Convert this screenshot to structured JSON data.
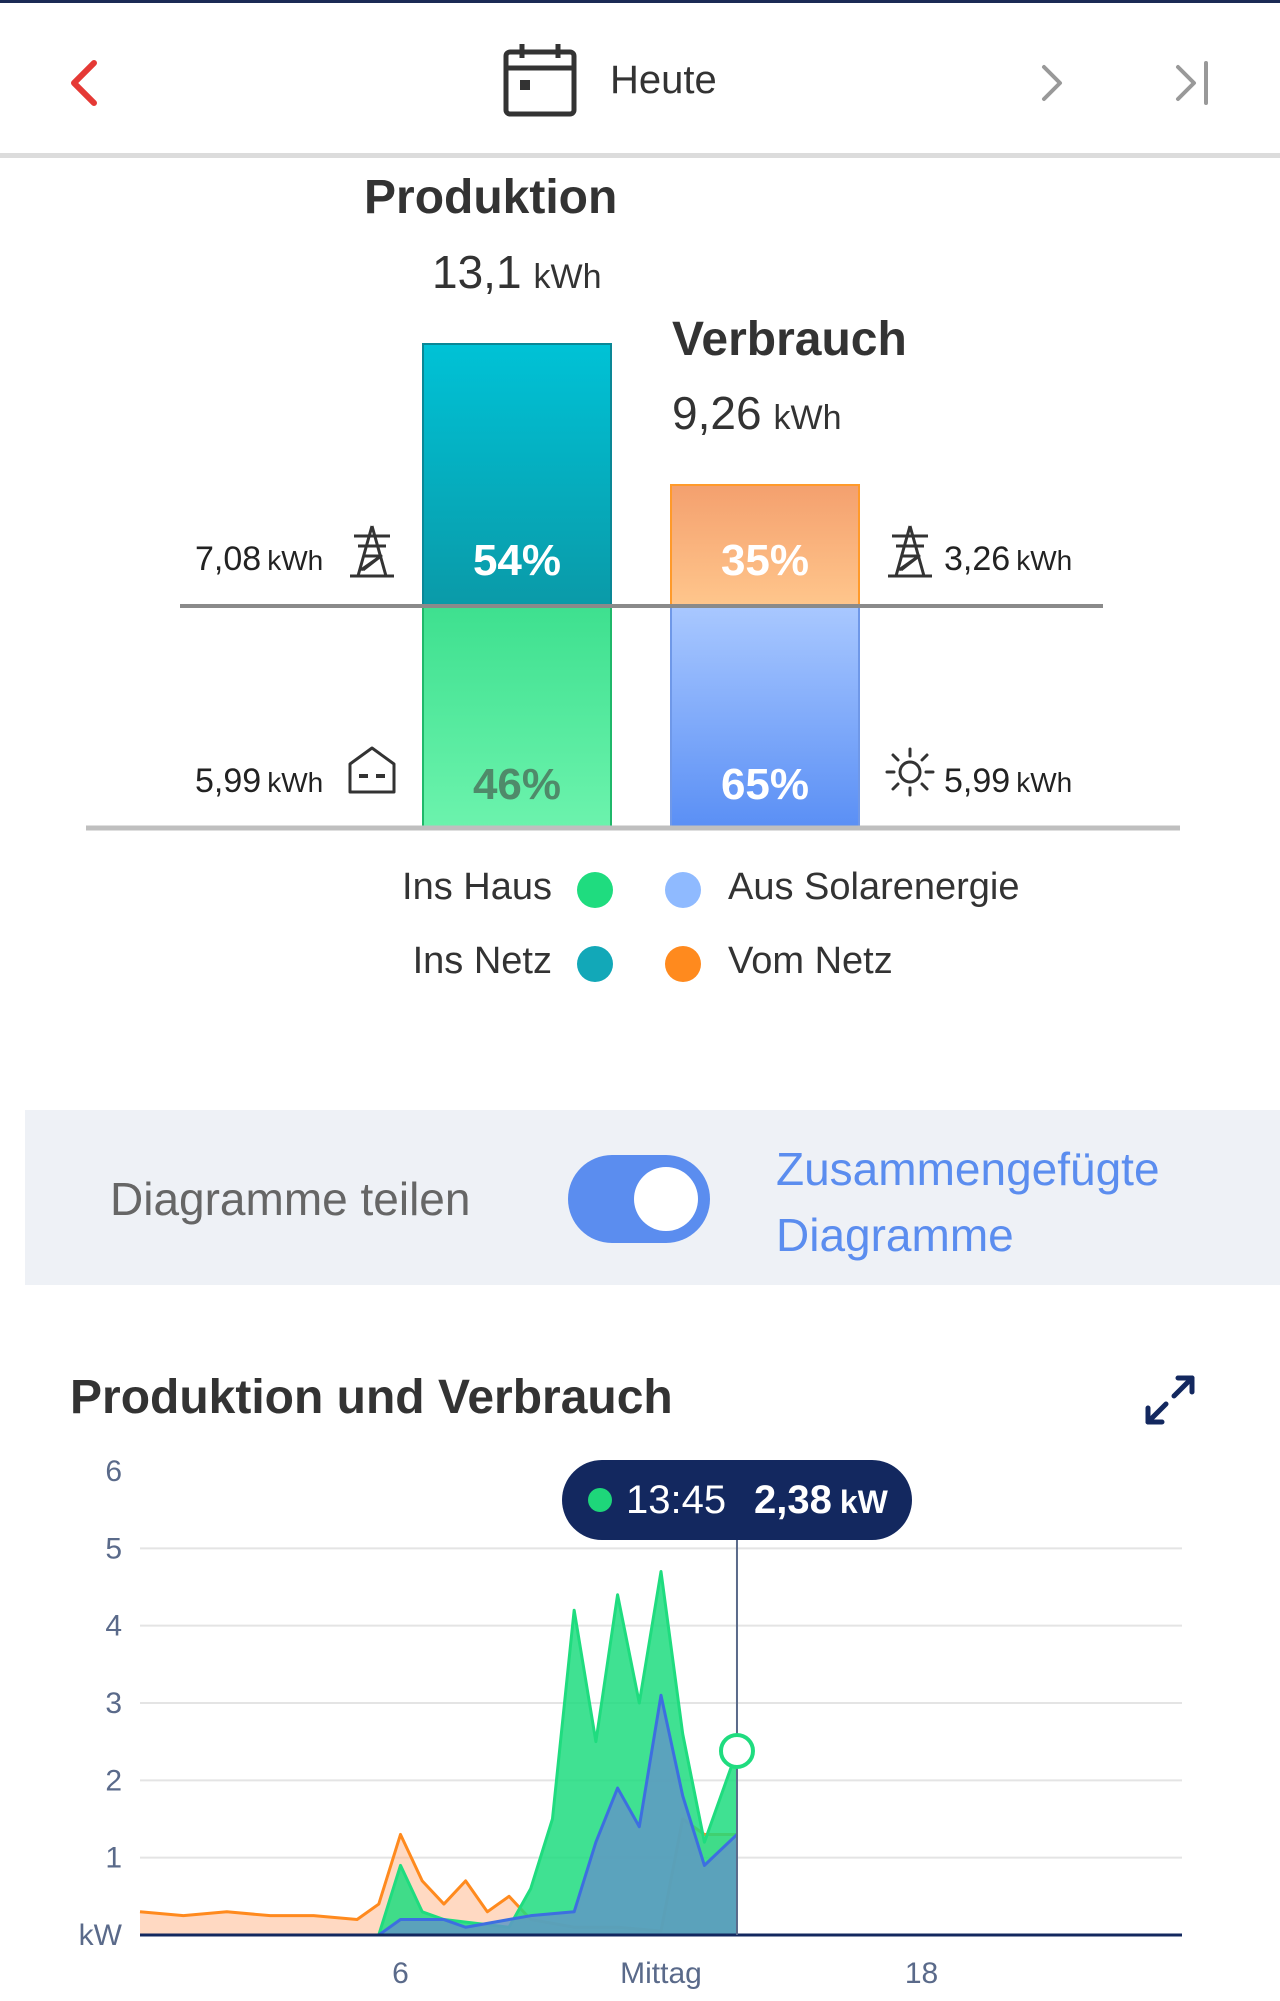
{
  "header": {
    "date_label": "Heute",
    "back_icon": "chevron-left-icon",
    "next_icon": "chevron-right-icon",
    "last_icon": "skip-to-end-icon",
    "calendar_icon": "calendar-icon",
    "accent_color": "#e53935"
  },
  "summary": {
    "production": {
      "label": "Produktion",
      "value": "13,1",
      "unit": "kWh"
    },
    "consumption": {
      "label": "Verbrauch",
      "value": "9,26",
      "unit": "kWh"
    },
    "production_bar": {
      "to_grid_percent": "54%",
      "to_house_percent": "46%",
      "to_grid_value": "7,08",
      "to_house_value": "5,99",
      "unit": "kWh",
      "to_grid_icon": "power-pylon-icon",
      "to_house_icon": "house-icon"
    },
    "consumption_bar": {
      "from_grid_percent": "35%",
      "from_solar_percent": "65%",
      "from_grid_value": "3,26",
      "from_solar_value": "5,99",
      "unit": "kWh",
      "from_grid_icon": "power-pylon-icon",
      "from_solar_icon": "sun-icon"
    }
  },
  "legend": {
    "items": [
      {
        "label": "Ins Haus",
        "color": "#1fdc7f"
      },
      {
        "label": "Ins Netz",
        "color": "#12a8b8"
      },
      {
        "label": "Aus Solarenergie",
        "color": "#8fbaff"
      },
      {
        "label": "Vom Netz",
        "color": "#ff8a1e"
      }
    ]
  },
  "view_toggle": {
    "split_label": "Diagramme teilen",
    "merged_label_line1": "Zusammengefügte",
    "merged_label_line2": "Diagramme",
    "state": "merged"
  },
  "chart_section": {
    "title": "Produktion und Verbrauch",
    "expand_icon": "expand-icon",
    "tooltip": {
      "time": "13:45",
      "value": "2,38",
      "unit": "kW"
    }
  },
  "chart_data": {
    "type": "area",
    "title": "Produktion und Verbrauch",
    "ylabel": "kW",
    "ylim": [
      0,
      6
    ],
    "yticks": [
      "1",
      "2",
      "3",
      "4",
      "5",
      "6"
    ],
    "xlim": [
      0,
      24
    ],
    "xticks": [
      {
        "value": 6,
        "label": "6"
      },
      {
        "value": 12,
        "label": "Mittag"
      },
      {
        "value": 18,
        "label": "18"
      }
    ],
    "grid": true,
    "series": [
      {
        "name": "Ins Haus",
        "color": "#1fdc7f",
        "x": [
          0,
          5.5,
          6.0,
          6.5,
          7.0,
          8.5,
          9.0,
          9.5,
          10.0,
          10.5,
          11.0,
          11.5,
          12.0,
          12.5,
          13.0,
          13.75
        ],
        "y": [
          0,
          0,
          0.9,
          0.3,
          0.2,
          0.1,
          0.6,
          1.5,
          4.2,
          2.5,
          4.4,
          3.0,
          4.7,
          2.6,
          1.2,
          2.38
        ]
      },
      {
        "name": "Aus Solarenergie",
        "color": "#8fbaff",
        "x": [
          0,
          5.5,
          6.0,
          7.0,
          7.5,
          8.5,
          9.0,
          10.0,
          10.5,
          11.0,
          11.5,
          12.0,
          12.5,
          13.0,
          13.75
        ],
        "y": [
          0,
          0,
          0.2,
          0.2,
          0.1,
          0.2,
          0.25,
          0.3,
          1.2,
          1.9,
          1.4,
          3.1,
          1.8,
          0.9,
          1.3
        ]
      },
      {
        "name": "Vom Netz",
        "color": "#ff8a1e",
        "x": [
          0,
          1,
          2,
          3,
          4,
          5,
          5.5,
          6.0,
          6.5,
          7.0,
          7.5,
          8.0,
          8.5,
          9.0,
          10.0,
          11.0,
          12.0,
          12.5,
          13.0,
          13.75
        ],
        "y": [
          0.3,
          0.25,
          0.3,
          0.25,
          0.25,
          0.2,
          0.4,
          1.3,
          0.7,
          0.4,
          0.7,
          0.3,
          0.5,
          0.2,
          0.1,
          0.1,
          0.05,
          1.5,
          1.3,
          1.3
        ]
      }
    ],
    "marker": {
      "x": 13.75,
      "y": 2.38
    }
  }
}
